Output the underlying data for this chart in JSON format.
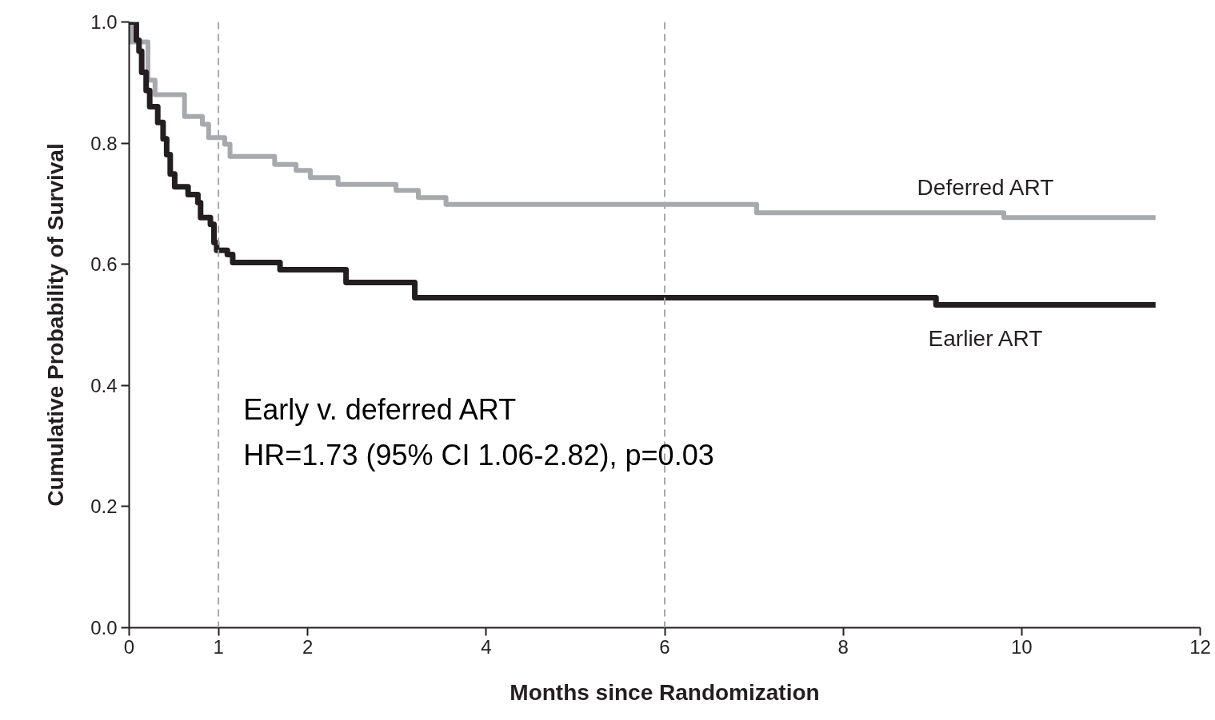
{
  "chart_data": {
    "type": "step",
    "xlabel": "Months since Randomization",
    "ylabel": "Cumulative Probability of Survival",
    "xlim": [
      0,
      12
    ],
    "ylim": [
      0,
      1.0
    ],
    "xticks": [
      0,
      1,
      2,
      4,
      6,
      8,
      10,
      12
    ],
    "yticks": [
      {
        "value": 0,
        "label": "0.0"
      },
      0.2,
      0.4,
      0.6,
      0.8,
      {
        "value": 1,
        "label": "1.0"
      }
    ],
    "grid": false,
    "legend": false,
    "line_style": "solid",
    "marker": "none",
    "series": [
      {
        "name": "Deferred ART",
        "color": "#a7a9ac",
        "x": [
          0,
          0.02,
          0.21,
          0.29,
          0.62,
          0.82,
          0.89,
          1.07,
          1.13,
          1.63,
          1.87,
          2.03,
          2.34,
          2.99,
          3.24,
          3.55,
          7.03,
          9.8,
          11.5
        ],
        "values": [
          1.0,
          0.967,
          0.904,
          0.88,
          0.844,
          0.831,
          0.809,
          0.798,
          0.778,
          0.765,
          0.755,
          0.743,
          0.732,
          0.722,
          0.71,
          0.699,
          0.685,
          0.677,
          0.677
        ]
      },
      {
        "name": "Earlier ART",
        "color": "#231f20",
        "x": [
          0,
          0.08,
          0.11,
          0.14,
          0.19,
          0.23,
          0.32,
          0.38,
          0.42,
          0.46,
          0.51,
          0.66,
          0.77,
          0.8,
          0.91,
          0.95,
          0.98,
          1.1,
          1.16,
          1.69,
          2.43,
          3.2,
          9.04,
          11.5
        ],
        "values": [
          1.0,
          0.97,
          0.952,
          0.917,
          0.887,
          0.86,
          0.834,
          0.807,
          0.781,
          0.749,
          0.728,
          0.715,
          0.702,
          0.677,
          0.666,
          0.636,
          0.623,
          0.616,
          0.603,
          0.591,
          0.57,
          0.545,
          0.533,
          0.533
        ]
      }
    ],
    "ref_lines": [
      {
        "axis": "x",
        "value": 1,
        "color": "#a7a9ac",
        "line_style": "dashed"
      },
      {
        "axis": "x",
        "value": 6,
        "color": "#a7a9ac",
        "line_style": "dashed"
      }
    ],
    "annotations": [
      "Early v. deferred ART",
      "HR=1.73 (95% CI 1.06-2.82), p=0.03"
    ]
  }
}
